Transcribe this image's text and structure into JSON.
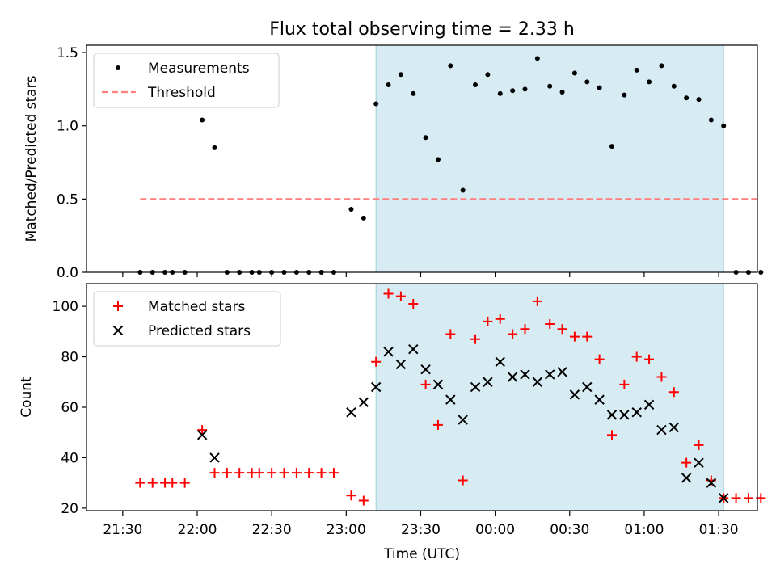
{
  "title": "Flux total observing time = 2.33 h",
  "xlabel": "Time (UTC)",
  "x_ticks": [
    "21:30",
    "22:00",
    "22:30",
    "23:00",
    "23:30",
    "00:00",
    "00:30",
    "01:00",
    "01:30"
  ],
  "chart_data": [
    {
      "type": "scatter",
      "panel": "top",
      "ylabel": "Matched/Predicted stars",
      "ylim": [
        0,
        1.55
      ],
      "y_ticks": [
        0.0,
        0.5,
        1.0,
        1.5
      ],
      "y_tick_labels": [
        "0.0",
        "0.5",
        "1.0",
        "1.5"
      ],
      "xlim_minutes_from_midnight": [
        -164.6,
        105.6
      ],
      "highlight_span": [
        "23:12",
        "01:32"
      ],
      "legend_position": "upper-left",
      "series": [
        {
          "name": "Measurements",
          "marker": "dot",
          "color": "#000000",
          "x": [
            "21:37",
            "21:42",
            "21:47",
            "21:50",
            "21:55",
            "22:02",
            "22:07",
            "22:12",
            "22:17",
            "22:22",
            "22:25",
            "22:30",
            "22:35",
            "22:40",
            "22:45",
            "22:50",
            "22:55",
            "23:02",
            "23:07",
            "23:12",
            "23:17",
            "23:22",
            "23:27",
            "23:32",
            "23:37",
            "23:42",
            "23:47",
            "23:52",
            "23:57",
            "00:02",
            "00:07",
            "00:12",
            "00:17",
            "00:22",
            "00:27",
            "00:32",
            "00:37",
            "00:42",
            "00:47",
            "00:52",
            "00:57",
            "01:02",
            "01:07",
            "01:12",
            "01:17",
            "01:22",
            "01:27",
            "01:32",
            "01:37",
            "01:42",
            "01:47"
          ],
          "y": [
            0,
            0,
            0,
            0,
            0,
            1.04,
            0.85,
            0,
            0,
            0,
            0,
            0,
            0,
            0,
            0,
            0,
            0,
            0.43,
            0.37,
            1.15,
            1.28,
            1.35,
            1.22,
            0.92,
            0.77,
            1.41,
            0.56,
            1.28,
            1.35,
            1.22,
            1.24,
            1.25,
            1.46,
            1.27,
            1.23,
            1.36,
            1.3,
            1.26,
            0.86,
            1.21,
            1.38,
            1.3,
            1.41,
            1.27,
            1.19,
            1.18,
            1.04,
            1.0,
            0,
            0,
            0
          ]
        },
        {
          "name": "Threshold",
          "style": "dashed",
          "color": "#ff7f7f",
          "x": [
            "21:37",
            "01:47"
          ],
          "y": [
            0.5,
            0.5
          ]
        }
      ]
    },
    {
      "type": "scatter",
      "panel": "bottom",
      "ylabel": "Count",
      "ylim": [
        19,
        109
      ],
      "y_ticks": [
        20,
        40,
        60,
        80,
        100
      ],
      "y_tick_labels": [
        "20",
        "40",
        "60",
        "80",
        "100"
      ],
      "xlim_minutes_from_midnight": [
        -164.6,
        105.6
      ],
      "highlight_span": [
        "23:12",
        "01:32"
      ],
      "legend_position": "upper-left",
      "series": [
        {
          "name": "Matched stars",
          "marker": "plus",
          "color": "#ff0000",
          "x": [
            "21:37",
            "21:42",
            "21:47",
            "21:50",
            "21:55",
            "22:02",
            "22:07",
            "22:12",
            "22:17",
            "22:22",
            "22:25",
            "22:30",
            "22:35",
            "22:40",
            "22:45",
            "22:50",
            "22:55",
            "23:02",
            "23:07",
            "23:12",
            "23:17",
            "23:22",
            "23:27",
            "23:32",
            "23:37",
            "23:42",
            "23:47",
            "23:52",
            "23:57",
            "00:02",
            "00:07",
            "00:12",
            "00:17",
            "00:22",
            "00:27",
            "00:32",
            "00:37",
            "00:42",
            "00:47",
            "00:52",
            "00:57",
            "01:02",
            "01:07",
            "01:12",
            "01:17",
            "01:22",
            "01:27",
            "01:32",
            "01:37",
            "01:42",
            "01:47"
          ],
          "y": [
            30,
            30,
            30,
            30,
            30,
            51,
            34,
            34,
            34,
            34,
            34,
            34,
            34,
            34,
            34,
            34,
            34,
            25,
            23,
            78,
            105,
            104,
            101,
            69,
            53,
            89,
            31,
            87,
            94,
            95,
            89,
            91,
            102,
            93,
            91,
            88,
            88,
            79,
            49,
            69,
            80,
            79,
            72,
            66,
            38,
            45,
            31,
            24,
            24,
            24,
            24
          ]
        },
        {
          "name": "Predicted stars",
          "marker": "x",
          "color": "#000000",
          "x": [
            "22:02",
            "22:07",
            "23:02",
            "23:07",
            "23:12",
            "23:17",
            "23:22",
            "23:27",
            "23:32",
            "23:37",
            "23:42",
            "23:47",
            "23:52",
            "23:57",
            "00:02",
            "00:07",
            "00:12",
            "00:17",
            "00:22",
            "00:27",
            "00:32",
            "00:37",
            "00:42",
            "00:47",
            "00:52",
            "00:57",
            "01:02",
            "01:07",
            "01:12",
            "01:17",
            "01:22",
            "01:27",
            "01:32"
          ],
          "y": [
            49,
            40,
            58,
            62,
            68,
            82,
            77,
            83,
            75,
            69,
            63,
            55,
            68,
            70,
            78,
            72,
            73,
            70,
            73,
            74,
            65,
            68,
            63,
            57,
            57,
            58,
            61,
            51,
            52,
            32,
            38,
            30,
            24
          ]
        }
      ]
    }
  ]
}
